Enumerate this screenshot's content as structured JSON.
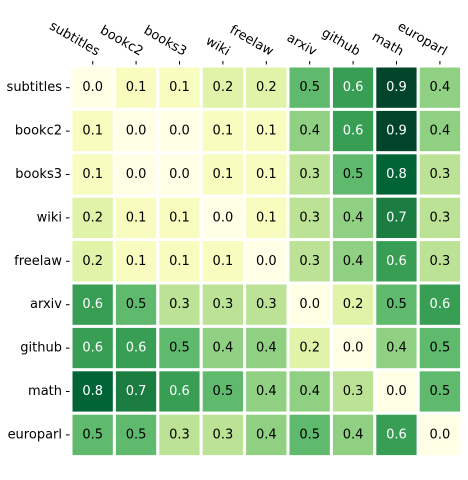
{
  "chart_data": {
    "type": "heatmap",
    "title": "",
    "xlabel": "",
    "ylabel": "",
    "x_labels": [
      "subtitles",
      "bookc2",
      "books3",
      "wiki",
      "freelaw",
      "arxiv",
      "github",
      "math",
      "europarl"
    ],
    "y_labels": [
      "subtitles",
      "bookc2",
      "books3",
      "wiki",
      "freelaw",
      "arxiv",
      "github",
      "math",
      "europarl"
    ],
    "x_tick_position": "top",
    "x_tick_rotation": "-30deg",
    "colormap": "YlGn",
    "color_range": [
      0.0,
      0.9
    ],
    "cell_border_color": "#ffffff",
    "values": [
      [
        0.0,
        0.1,
        0.1,
        0.2,
        0.2,
        0.5,
        0.6,
        0.9,
        0.4
      ],
      [
        0.1,
        0.0,
        0.0,
        0.1,
        0.1,
        0.4,
        0.6,
        0.9,
        0.4
      ],
      [
        0.1,
        0.0,
        0.0,
        0.1,
        0.1,
        0.3,
        0.5,
        0.8,
        0.3
      ],
      [
        0.2,
        0.1,
        0.1,
        0.0,
        0.1,
        0.3,
        0.4,
        0.7,
        0.3
      ],
      [
        0.2,
        0.1,
        0.1,
        0.1,
        0.0,
        0.3,
        0.4,
        0.6,
        0.3
      ],
      [
        0.6,
        0.5,
        0.3,
        0.3,
        0.3,
        0.0,
        0.2,
        0.5,
        0.6
      ],
      [
        0.6,
        0.6,
        0.5,
        0.4,
        0.4,
        0.2,
        0.0,
        0.4,
        0.5
      ],
      [
        0.8,
        0.7,
        0.6,
        0.5,
        0.4,
        0.4,
        0.3,
        0.0,
        0.5
      ],
      [
        0.5,
        0.5,
        0.3,
        0.3,
        0.4,
        0.5,
        0.4,
        0.6,
        0.0
      ]
    ],
    "display_values": [
      [
        "0.0",
        "0.1",
        "0.1",
        "0.2",
        "0.2",
        "0.5",
        "0.6",
        "0.9",
        "0.4"
      ],
      [
        "0.1",
        "0.0",
        "0.0",
        "0.1",
        "0.1",
        "0.4",
        "0.6",
        "0.9",
        "0.4"
      ],
      [
        "0.1",
        "0.0",
        "0.0",
        "0.1",
        "0.1",
        "0.3",
        "0.5",
        "0.8",
        "0.3"
      ],
      [
        "0.2",
        "0.1",
        "0.1",
        "0.0",
        "0.1",
        "0.3",
        "0.4",
        "0.7",
        "0.3"
      ],
      [
        "0.2",
        "0.1",
        "0.1",
        "0.1",
        "0.0",
        "0.3",
        "0.4",
        "0.6",
        "0.3"
      ],
      [
        "0.6",
        "0.5",
        "0.3",
        "0.3",
        "0.3",
        "0.0",
        "0.2",
        "0.5",
        "0.6"
      ],
      [
        "0.6",
        "0.6",
        "0.5",
        "0.4",
        "0.4",
        "0.2",
        "0.0",
        "0.4",
        "0.5"
      ],
      [
        "0.8",
        "0.7",
        "0.6",
        "0.5",
        "0.4",
        "0.4",
        "0.3",
        "0.0",
        "0.5"
      ],
      [
        "0.5",
        "0.5",
        "0.3",
        "0.3",
        "0.4",
        "0.5",
        "0.4",
        "0.6",
        "0.0"
      ]
    ]
  }
}
